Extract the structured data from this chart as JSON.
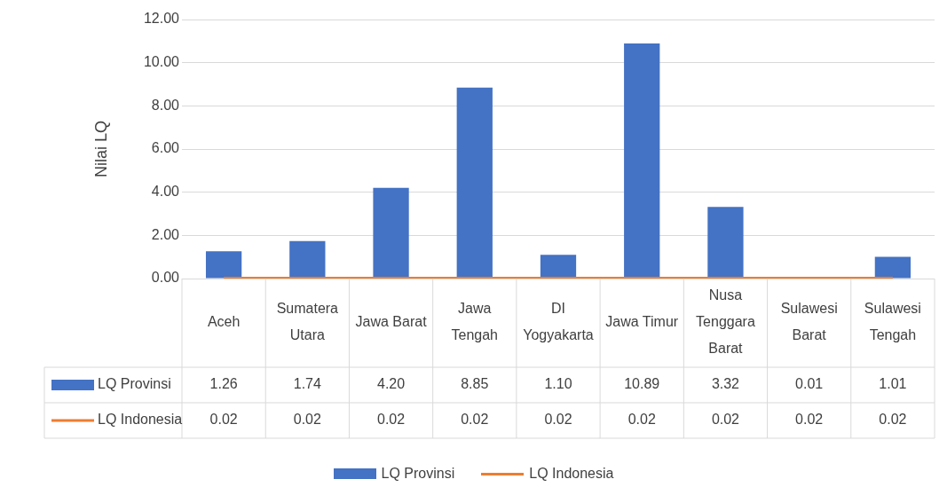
{
  "chart_data": {
    "type": "bar",
    "ylabel": "Nilai LQ",
    "categories": [
      "Aceh",
      "Sumatera Utara",
      "Jawa Barat",
      "Jawa Tengah",
      "DI Yogyakarta",
      "Jawa Timur",
      "Nusa Tenggara Barat",
      "Sulawesi Barat",
      "Sulawesi Tengah"
    ],
    "series": [
      {
        "name": "LQ Provinsi",
        "color": "#4472c4",
        "values": [
          1.26,
          1.74,
          4.2,
          8.85,
          1.1,
          10.89,
          3.32,
          0.01,
          1.01
        ],
        "value_labels": [
          "1.26",
          "1.74",
          "4.20",
          "8.85",
          "1.10",
          "10.89",
          "3.32",
          "0.01",
          "1.01"
        ]
      },
      {
        "name": "LQ Indonesia",
        "type": "line",
        "color": "#ed7d31",
        "values": [
          0.02,
          0.02,
          0.02,
          0.02,
          0.02,
          0.02,
          0.02,
          0.02,
          0.02
        ],
        "value_labels": [
          "0.02",
          "0.02",
          "0.02",
          "0.02",
          "0.02",
          "0.02",
          "0.02",
          "0.02",
          "0.02"
        ]
      }
    ],
    "ylim": [
      0,
      12
    ],
    "yticks": [
      {
        "value": 0,
        "label": "0.00"
      },
      {
        "value": 2,
        "label": "2.00"
      },
      {
        "value": 4,
        "label": "4.00"
      },
      {
        "value": 6,
        "label": "6.00"
      },
      {
        "value": 8,
        "label": "8.00"
      },
      {
        "value": 10,
        "label": "10.00"
      },
      {
        "value": 12,
        "label": "12.00"
      }
    ],
    "grid": "y",
    "legend": "bottom",
    "marker": "none",
    "line_style": "solid"
  }
}
